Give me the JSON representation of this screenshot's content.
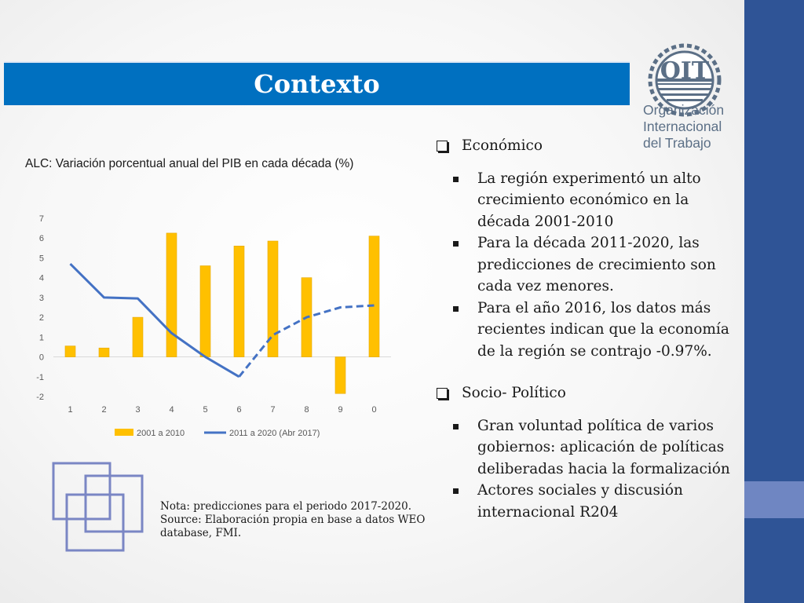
{
  "header": {
    "title": "Contexto"
  },
  "logo": {
    "acronym": "OIT",
    "lines": [
      "Organización",
      "Internacional",
      "del Trabajo"
    ]
  },
  "chart_title": "ALC: Variación porcentual anual del PIB en cada década (%)",
  "chart_data": {
    "type": "bar",
    "categories": [
      "1",
      "2",
      "3",
      "4",
      "5",
      "6",
      "7",
      "8",
      "9",
      "0"
    ],
    "ylim": [
      -2,
      7
    ],
    "yticks": [
      "7",
      "6",
      "5",
      "4",
      "3",
      "2",
      "1",
      "0",
      "-1",
      "-2"
    ],
    "grid": false,
    "legend_position": "bottom",
    "series": [
      {
        "name": "2001 a 2010",
        "type": "bar",
        "color": "#ffc000",
        "values": [
          0.55,
          0.45,
          2.0,
          6.25,
          4.6,
          5.6,
          5.85,
          4.0,
          -1.85,
          6.1
        ]
      },
      {
        "name": "2011 a 2020 (Abr 2017)",
        "type": "line",
        "color": "#4472c4",
        "values": [
          4.7,
          3.0,
          2.95,
          1.2,
          0.0,
          -1.0,
          1.1,
          2.0,
          2.5,
          2.6
        ],
        "dashed_from_index": 6
      }
    ]
  },
  "note": {
    "lines": [
      "Nota: predicciones para el periodo 2017-2020.",
      "Source: Elaboración propia en base a datos WEO",
      "database, FMI."
    ]
  },
  "sections": [
    {
      "heading": "Económico",
      "items": [
        "La región experimentó un alto crecimiento económico en la década 2001-2010",
        "Para la década 2011-2020, las predicciones de crecimiento son cada vez menores.",
        "Para el año 2016, los datos más recientes indican que la economía de la región se contrajo -0.97%."
      ]
    },
    {
      "heading": "Socio- Político",
      "items": [
        "Gran voluntad política de varios gobiernos: aplicación de políticas deliberadas hacia la formalización",
        "Actores sociales y discusión internacional  R204"
      ]
    }
  ]
}
